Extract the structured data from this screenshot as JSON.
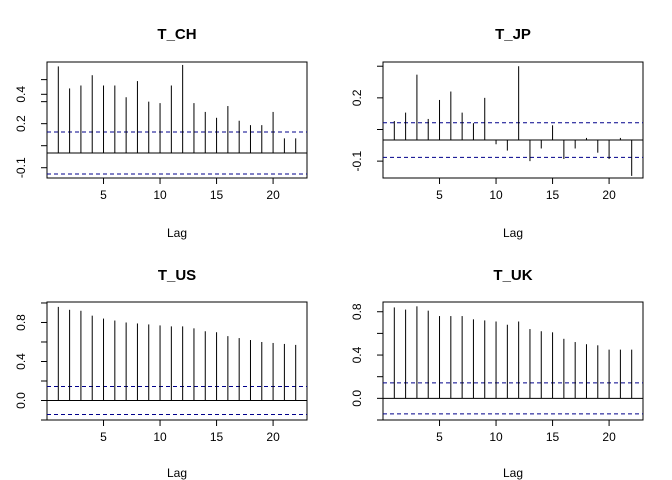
{
  "chart_data": [
    {
      "type": "bar",
      "title": "T_CH",
      "xlabel": "Lag",
      "ylabel": "",
      "x": [
        1,
        2,
        3,
        4,
        5,
        6,
        7,
        8,
        9,
        10,
        11,
        12,
        13,
        14,
        15,
        16,
        17,
        18,
        19,
        20,
        21,
        22
      ],
      "values": [
        0.59,
        0.44,
        0.46,
        0.53,
        0.46,
        0.46,
        0.38,
        0.49,
        0.35,
        0.34,
        0.46,
        0.6,
        0.34,
        0.28,
        0.24,
        0.32,
        0.22,
        0.19,
        0.19,
        0.28,
        0.1,
        0.1
      ],
      "conf_limits": [
        0.143,
        -0.143
      ],
      "xlim": [
        0,
        23
      ],
      "ylim": [
        -0.17,
        0.62
      ],
      "xticks": [
        5,
        10,
        15,
        20
      ],
      "ytick_values": [
        -0.1,
        0.2,
        0.4
      ],
      "yticks": [
        "-0.1",
        "0.2",
        "0.4"
      ],
      "bar_color": "#000000",
      "conf_color": "#00008B",
      "zero_line": true,
      "grid": false
    },
    {
      "type": "bar",
      "title": "T_JP",
      "xlabel": "Lag",
      "ylabel": "",
      "x": [
        1,
        2,
        3,
        4,
        5,
        6,
        7,
        8,
        9,
        10,
        11,
        12,
        13,
        14,
        15,
        16,
        17,
        18,
        19,
        20,
        21,
        22
      ],
      "values": [
        0.09,
        0.13,
        0.31,
        0.1,
        0.19,
        0.23,
        0.13,
        0.08,
        0.2,
        -0.02,
        -0.05,
        0.35,
        -0.1,
        -0.04,
        0.07,
        -0.09,
        -0.04,
        0.01,
        -0.06,
        -0.09,
        0.01,
        -0.17
      ],
      "conf_limits": [
        0.082,
        -0.082
      ],
      "xlim": [
        0,
        23
      ],
      "ylim": [
        -0.18,
        0.37
      ],
      "xticks": [
        5,
        10,
        15,
        20
      ],
      "ytick_values": [
        -0.1,
        0.2
      ],
      "yticks": [
        "-0.1",
        "0.2"
      ],
      "bar_color": "#000000",
      "conf_color": "#00008B",
      "zero_line": true,
      "grid": false
    },
    {
      "type": "bar",
      "title": "T_US",
      "xlabel": "Lag",
      "ylabel": "",
      "x": [
        1,
        2,
        3,
        4,
        5,
        6,
        7,
        8,
        9,
        10,
        11,
        12,
        13,
        14,
        15,
        16,
        17,
        18,
        19,
        20,
        21,
        22
      ],
      "values": [
        0.96,
        0.93,
        0.92,
        0.87,
        0.84,
        0.82,
        0.8,
        0.79,
        0.78,
        0.77,
        0.76,
        0.76,
        0.74,
        0.71,
        0.7,
        0.66,
        0.64,
        0.62,
        0.6,
        0.59,
        0.58,
        0.57
      ],
      "conf_limits": [
        0.143,
        -0.143
      ],
      "xlim": [
        0,
        23
      ],
      "ylim": [
        -0.2,
        1.01
      ],
      "xticks": [
        5,
        10,
        15,
        20
      ],
      "ytick_values": [
        0.0,
        0.4,
        0.8
      ],
      "yticks": [
        "0.0",
        "0.4",
        "0.8"
      ],
      "bar_color": "#000000",
      "conf_color": "#00008B",
      "zero_line": true,
      "grid": false
    },
    {
      "type": "bar",
      "title": "T_UK",
      "xlabel": "Lag",
      "ylabel": "",
      "x": [
        1,
        2,
        3,
        4,
        5,
        6,
        7,
        8,
        9,
        10,
        11,
        12,
        13,
        14,
        15,
        16,
        17,
        18,
        19,
        20,
        21,
        22
      ],
      "values": [
        0.84,
        0.82,
        0.85,
        0.81,
        0.76,
        0.76,
        0.76,
        0.73,
        0.72,
        0.71,
        0.68,
        0.71,
        0.64,
        0.62,
        0.61,
        0.55,
        0.52,
        0.5,
        0.49,
        0.45,
        0.45,
        0.45
      ],
      "conf_limits": [
        0.143,
        -0.143
      ],
      "xlim": [
        0,
        23
      ],
      "ylim": [
        -0.2,
        0.89
      ],
      "xticks": [
        5,
        10,
        15,
        20
      ],
      "ytick_values": [
        0.0,
        0.4,
        0.8
      ],
      "yticks": [
        "0.0",
        "0.4",
        "0.8"
      ],
      "bar_color": "#000000",
      "conf_color": "#00008B",
      "zero_line": true,
      "grid": false
    }
  ]
}
